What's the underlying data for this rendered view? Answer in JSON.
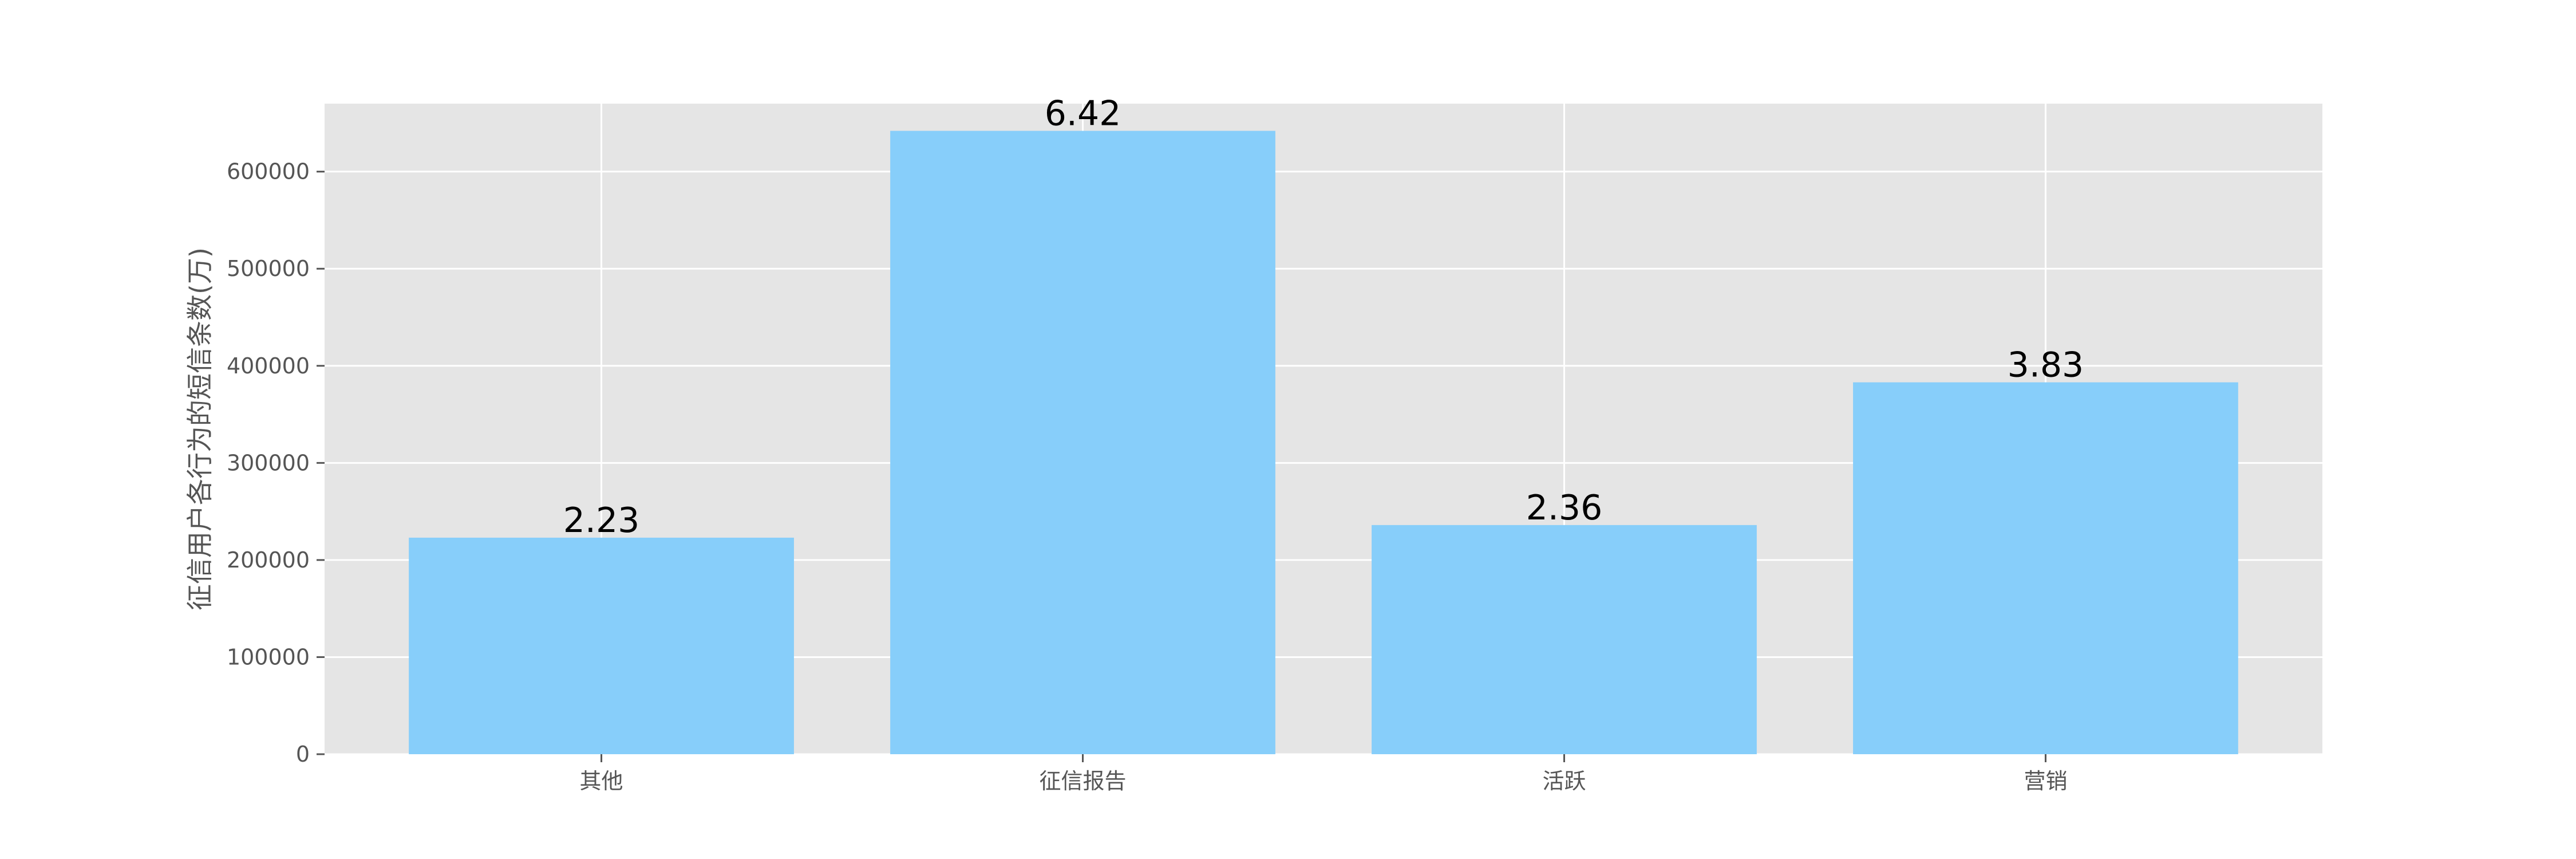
{
  "chart_data": {
    "type": "bar",
    "categories": [
      "其他",
      "征信报告",
      "活跃",
      "营销"
    ],
    "values": [
      223000,
      642000,
      236000,
      383000
    ],
    "data_labels": [
      "2.23",
      "6.42",
      "2.36",
      "3.83"
    ],
    "title": "",
    "xlabel": "",
    "ylabel": "征信用户各行为的短信条数(万)",
    "ylim": [
      0,
      670000
    ],
    "yticks": [
      0,
      100000,
      200000,
      300000,
      400000,
      500000,
      600000
    ],
    "ytick_labels": [
      "0",
      "100000",
      "200000",
      "300000",
      "400000",
      "500000",
      "600000"
    ],
    "grid": true,
    "bar_color": "#87CEFA",
    "background_color": "#E5E5E5",
    "grid_color": "#FFFFFF"
  }
}
